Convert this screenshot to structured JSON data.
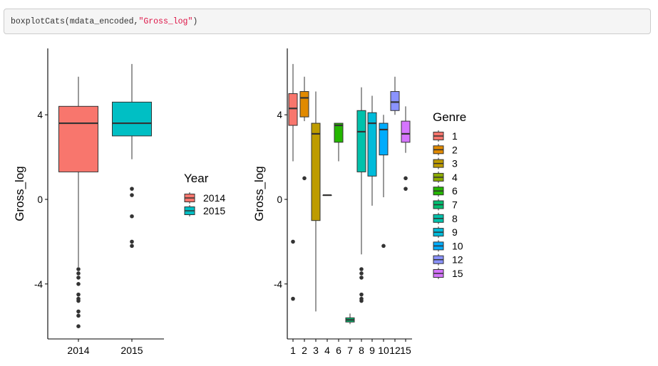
{
  "code": {
    "prefix": "boxplotCats(mdata_encoded,",
    "string_arg": "\"Gross_log\"",
    "suffix": ")"
  },
  "colors": {
    "Year": {
      "2014": "#F8766D",
      "2015": "#00BFC4"
    },
    "Genre": {
      "1": "#F8766D",
      "2": "#E18A00",
      "3": "#BE9C00",
      "4": "#8CAB00",
      "6": "#24B700",
      "7": "#00BE70",
      "8": "#00C1AB",
      "9": "#00BBDA",
      "10": "#00ACFC",
      "12": "#8B93FF",
      "15": "#D575FE"
    }
  },
  "chart_data": [
    {
      "type": "boxplot",
      "xlabel": "",
      "ylabel": "Gross_log",
      "ylim": [
        -6.5,
        7.2
      ],
      "yticks": [
        "4",
        "0",
        "-4"
      ],
      "legend": {
        "title": "Year",
        "entries": [
          "2014",
          "2015"
        ],
        "placement": "right"
      },
      "grid": false,
      "categories": [
        "2014",
        "2015"
      ],
      "boxes": [
        {
          "group": "2014",
          "q1": 1.3,
          "median": 3.6,
          "q3": 4.4,
          "whisker_low": -3.2,
          "whisker_high": 5.8,
          "outliers": [
            -3.3,
            -3.5,
            -3.7,
            -4.0,
            -4.5,
            -4.7,
            -4.8,
            -5.3,
            -5.5,
            -6.0
          ]
        },
        {
          "group": "2015",
          "q1": 3.0,
          "median": 3.6,
          "q3": 4.6,
          "whisker_low": 1.9,
          "whisker_high": 6.4,
          "outliers": [
            0.5,
            0.2,
            -0.8,
            -2.0,
            -2.2
          ]
        }
      ]
    },
    {
      "type": "boxplot",
      "xlabel": "",
      "ylabel": "Gross_log",
      "ylim": [
        -6.5,
        7.2
      ],
      "yticks": [
        "4",
        "0",
        "-4"
      ],
      "legend": {
        "title": "Genre",
        "entries": [
          "1",
          "2",
          "3",
          "4",
          "6",
          "7",
          "8",
          "9",
          "10",
          "12",
          "15"
        ],
        "placement": "right"
      },
      "grid": false,
      "categories": [
        "1",
        "2",
        "3",
        "4",
        "6",
        "7",
        "8",
        "9",
        "10",
        "12",
        "15"
      ],
      "boxes": [
        {
          "group": "1",
          "q1": 3.5,
          "median": 4.3,
          "q3": 5.0,
          "whisker_low": 1.8,
          "whisker_high": 6.4,
          "outliers": [
            -2.0,
            -4.7
          ]
        },
        {
          "group": "2",
          "q1": 3.9,
          "median": 4.8,
          "q3": 5.1,
          "whisker_low": 3.7,
          "whisker_high": 5.8,
          "outliers": [
            1.0
          ]
        },
        {
          "group": "3",
          "q1": -1.0,
          "median": 3.1,
          "q3": 3.6,
          "whisker_low": -5.3,
          "whisker_high": 5.1,
          "outliers": []
        },
        {
          "group": "4",
          "q1": 0.2,
          "median": 0.2,
          "q3": 0.2,
          "whisker_low": 0.2,
          "whisker_high": 0.2,
          "outliers": []
        },
        {
          "group": "6",
          "q1": 2.7,
          "median": 3.5,
          "q3": 3.6,
          "whisker_low": 1.8,
          "whisker_high": 3.6,
          "outliers": []
        },
        {
          "group": "7",
          "q1": -5.8,
          "median": -5.7,
          "q3": -5.6,
          "whisker_low": -5.9,
          "whisker_high": -5.4,
          "outliers": []
        },
        {
          "group": "8",
          "q1": 1.3,
          "median": 3.2,
          "q3": 4.2,
          "whisker_low": -2.6,
          "whisker_high": 5.3,
          "outliers": [
            -3.3,
            -3.5,
            -3.7,
            -4.5,
            -4.7,
            -4.8
          ]
        },
        {
          "group": "9",
          "q1": 1.1,
          "median": 3.6,
          "q3": 4.1,
          "whisker_low": -0.3,
          "whisker_high": 4.9,
          "outliers": []
        },
        {
          "group": "10",
          "q1": 2.1,
          "median": 3.3,
          "q3": 3.6,
          "whisker_low": 0.1,
          "whisker_high": 4.0,
          "outliers": [
            -2.2
          ]
        },
        {
          "group": "12",
          "q1": 4.2,
          "median": 4.6,
          "q3": 5.1,
          "whisker_low": 4.0,
          "whisker_high": 5.8,
          "outliers": []
        },
        {
          "group": "15",
          "q1": 2.7,
          "median": 3.1,
          "q3": 3.7,
          "whisker_low": 2.2,
          "whisker_high": 4.4,
          "outliers": [
            1.0,
            0.5
          ]
        }
      ]
    }
  ]
}
